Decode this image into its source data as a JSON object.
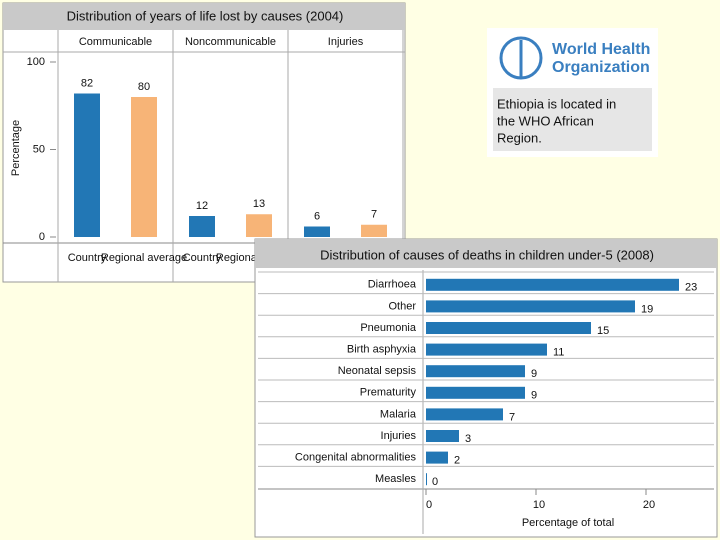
{
  "chart_data": [
    {
      "type": "bar",
      "title": "Distribution of years of life lost by causes (2004)",
      "categories": [
        "Communicable",
        "Noncommunicable",
        "Injuries"
      ],
      "series": [
        {
          "name": "Country",
          "color": "#2277b5",
          "values": [
            82,
            12,
            6
          ]
        },
        {
          "name": "Regional average",
          "color": "#f7b477",
          "values": [
            80,
            13,
            7
          ]
        }
      ],
      "ylabel": "Percentage",
      "ylim": [
        0,
        100
      ],
      "yticks": [
        0,
        50,
        100
      ]
    },
    {
      "type": "barh",
      "title": "Distribution of causes of deaths in children under-5  (2008)",
      "categories": [
        "Diarrhoea",
        "Other",
        "Pneumonia",
        "Birth asphyxia",
        "Neonatal sepsis",
        "Prematurity",
        "Malaria",
        "Injuries",
        "Congenital abnormalities",
        "Measles"
      ],
      "values": [
        23,
        19,
        15,
        11,
        9,
        9,
        7,
        3,
        2,
        0
      ],
      "color": "#2277b5",
      "xlabel": "Percentage of total",
      "xlim": [
        0,
        25
      ],
      "xticks": [
        0,
        10,
        20
      ]
    }
  ],
  "info_box": {
    "logo_text": [
      "World Health",
      "Organization"
    ],
    "note": [
      "Ethiopia is located in",
      "the WHO African",
      "Region."
    ]
  }
}
